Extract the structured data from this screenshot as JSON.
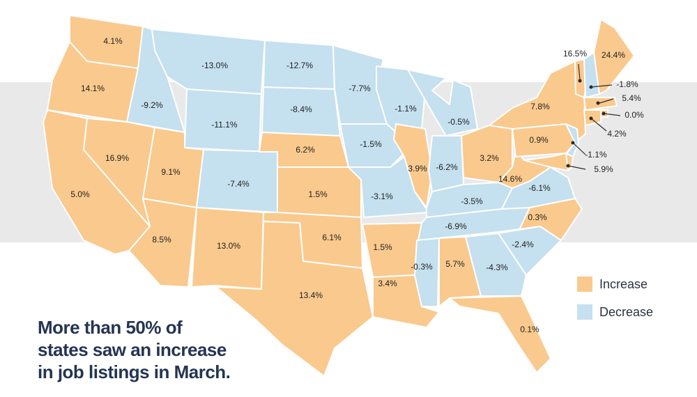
{
  "colors": {
    "increase": "#fac98d",
    "decrease": "#c5e0ef",
    "band": "#e9e9e9",
    "headline": "#243552"
  },
  "headline": {
    "line1": "More than 50% of",
    "line2": "states saw an increase",
    "line3": "in job listings in March."
  },
  "legend": [
    {
      "label": "Increase",
      "status": "increase"
    },
    {
      "label": "Decrease",
      "status": "decrease"
    }
  ],
  "states": [
    {
      "id": "WA",
      "status": "increase",
      "label": "4.1%"
    },
    {
      "id": "OR",
      "status": "increase",
      "label": "14.1%"
    },
    {
      "id": "CA",
      "status": "increase",
      "label": "5.0%"
    },
    {
      "id": "ID",
      "status": "decrease",
      "label": "-9.2%"
    },
    {
      "id": "NV",
      "status": "increase",
      "label": "16.9%"
    },
    {
      "id": "MT",
      "status": "decrease",
      "label": "-13.0%"
    },
    {
      "id": "WY",
      "status": "decrease",
      "label": "-11.1%"
    },
    {
      "id": "UT",
      "status": "increase",
      "label": "9.1%"
    },
    {
      "id": "AZ",
      "status": "increase",
      "label": "8.5%"
    },
    {
      "id": "CO",
      "status": "decrease",
      "label": "-7.4%"
    },
    {
      "id": "NM",
      "status": "increase",
      "label": "13.0%"
    },
    {
      "id": "ND",
      "status": "decrease",
      "label": "-12.7%"
    },
    {
      "id": "SD",
      "status": "decrease",
      "label": "-8.4%"
    },
    {
      "id": "NE",
      "status": "increase",
      "label": "6.2%"
    },
    {
      "id": "KS",
      "status": "increase",
      "label": "1.5%"
    },
    {
      "id": "OK",
      "status": "increase",
      "label": "6.1%"
    },
    {
      "id": "TX",
      "status": "increase",
      "label": "13.4%"
    },
    {
      "id": "MN",
      "status": "decrease",
      "label": "-7.7%"
    },
    {
      "id": "IA",
      "status": "decrease",
      "label": "-1.5%"
    },
    {
      "id": "MO",
      "status": "decrease",
      "label": "-3.1%"
    },
    {
      "id": "AR",
      "status": "increase",
      "label": "1.5%"
    },
    {
      "id": "LA",
      "status": "increase",
      "label": "3.4%"
    },
    {
      "id": "WI",
      "status": "decrease",
      "label": "-1.1%"
    },
    {
      "id": "IL",
      "status": "increase",
      "label": "3.9%"
    },
    {
      "id": "MI",
      "status": "decrease",
      "label": "-0.5%"
    },
    {
      "id": "IN",
      "status": "decrease",
      "label": "-6.2%"
    },
    {
      "id": "OH",
      "status": "increase",
      "label": "3.2%"
    },
    {
      "id": "KY",
      "status": "decrease",
      "label": "-3.5%"
    },
    {
      "id": "TN",
      "status": "decrease",
      "label": "-6.9%"
    },
    {
      "id": "MS",
      "status": "decrease",
      "label": "-0.3%"
    },
    {
      "id": "AL",
      "status": "increase",
      "label": "5.7%"
    },
    {
      "id": "GA",
      "status": "decrease",
      "label": "-4.3%"
    },
    {
      "id": "FL",
      "status": "increase",
      "label": "0.1%"
    },
    {
      "id": "SC",
      "status": "decrease",
      "label": "-2.4%"
    },
    {
      "id": "NC",
      "status": "increase",
      "label": "0.3%"
    },
    {
      "id": "VA",
      "status": "decrease",
      "label": "-6.1%"
    },
    {
      "id": "WV",
      "status": "increase",
      "label": "14.6%"
    },
    {
      "id": "PA",
      "status": "increase",
      "label": "0.9%"
    },
    {
      "id": "NY",
      "status": "increase",
      "label": "7.8%"
    },
    {
      "id": "VT",
      "status": "increase",
      "label": "16.5%"
    },
    {
      "id": "NH",
      "status": "decrease",
      "label": "-1.8%"
    },
    {
      "id": "ME",
      "status": "increase",
      "label": "24.4%"
    },
    {
      "id": "MA",
      "status": "increase",
      "label": "5.4%"
    },
    {
      "id": "RI",
      "status": "increase",
      "label": "0.0%"
    },
    {
      "id": "CT",
      "status": "increase",
      "label": "4.2%"
    },
    {
      "id": "NJ",
      "status": "decrease",
      "label": "-1.1%"
    },
    {
      "id": "MD",
      "status": "increase",
      "label": "5.9%"
    },
    {
      "id": "DE",
      "status": "increase",
      "label": ""
    }
  ]
}
